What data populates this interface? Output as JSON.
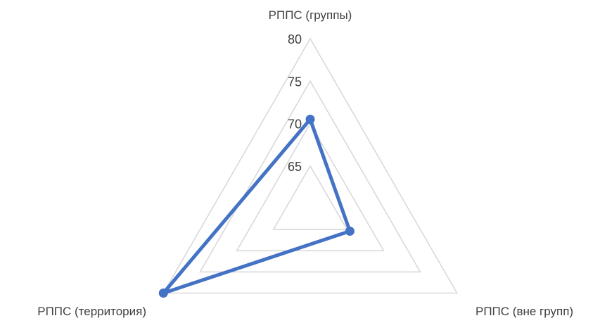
{
  "chart_data": {
    "type": "radar",
    "categories": [
      "РППС (группы)",
      "РППС (вне групп)",
      "РППС  (территория)"
    ],
    "series": [
      {
        "values": [
          70.5,
          65.4,
          80
        ],
        "color": "#4472C4"
      }
    ],
    "rlim": [
      60,
      80
    ],
    "ticks": [
      65,
      70,
      75,
      80
    ],
    "grid": true,
    "grid_color": "#D9D9D9",
    "legend": "none"
  }
}
